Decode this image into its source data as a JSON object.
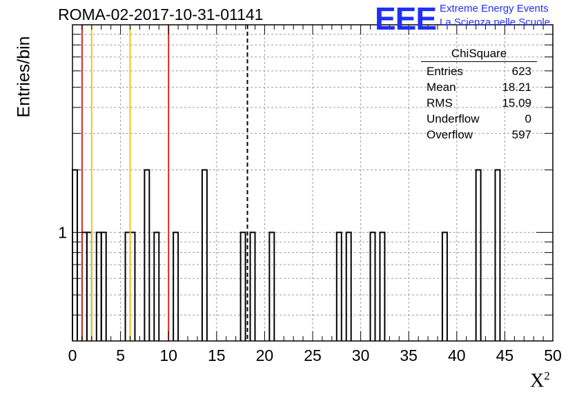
{
  "title": "ROMA-02-2017-10-31-01141",
  "brand": {
    "logo_text": "EEE",
    "line1": "Extreme Energy Events",
    "line2": "La Scienza nelle Scuole",
    "color": "#1f2ff5"
  },
  "stats": {
    "title": "ChiSquare",
    "rows": [
      {
        "label": "Entries",
        "value": "623"
      },
      {
        "label": "Mean",
        "value": "18.21"
      },
      {
        "label": "RMS",
        "value": "15.09"
      },
      {
        "label": "Underflow",
        "value": "0"
      },
      {
        "label": "Overflow",
        "value": "597"
      }
    ]
  },
  "chart_data": {
    "type": "bar",
    "histogram": true,
    "bin_width": 0.5,
    "xlabel": "X²",
    "ylabel": "Entries/bin",
    "xlim": [
      0,
      50
    ],
    "ylim": [
      0.3,
      10
    ],
    "log_y": true,
    "grid": true,
    "x_ticks": [
      0,
      5,
      10,
      15,
      20,
      25,
      30,
      35,
      40,
      45,
      50
    ],
    "y_tick_labels": [
      {
        "value": 1,
        "label": "1"
      }
    ],
    "bins": [
      {
        "x": 0.0,
        "value": 2
      },
      {
        "x": 1.0,
        "value": 1
      },
      {
        "x": 1.5,
        "value": 1
      },
      {
        "x": 2.5,
        "value": 1
      },
      {
        "x": 3.0,
        "value": 1
      },
      {
        "x": 5.5,
        "value": 1
      },
      {
        "x": 6.0,
        "value": 1
      },
      {
        "x": 7.5,
        "value": 2
      },
      {
        "x": 8.5,
        "value": 1
      },
      {
        "x": 10.5,
        "value": 1
      },
      {
        "x": 13.5,
        "value": 2
      },
      {
        "x": 17.5,
        "value": 1
      },
      {
        "x": 18.5,
        "value": 1
      },
      {
        "x": 20.5,
        "value": 1
      },
      {
        "x": 27.5,
        "value": 1
      },
      {
        "x": 28.5,
        "value": 1
      },
      {
        "x": 31.0,
        "value": 1
      },
      {
        "x": 32.0,
        "value": 1
      },
      {
        "x": 38.5,
        "value": 1
      },
      {
        "x": 42.0,
        "value": 2
      },
      {
        "x": 44.0,
        "value": 2
      }
    ],
    "reference_lines": [
      {
        "x": 1.0,
        "color": "#d42a1e",
        "style": "solid"
      },
      {
        "x": 2.0,
        "color": "#f2c51b",
        "style": "solid"
      },
      {
        "x": 6.0,
        "color": "#f2c51b",
        "style": "solid"
      },
      {
        "x": 10.0,
        "color": "#d42a1e",
        "style": "solid"
      },
      {
        "x": 18.21,
        "color": "#000000",
        "style": "dashed"
      }
    ]
  }
}
